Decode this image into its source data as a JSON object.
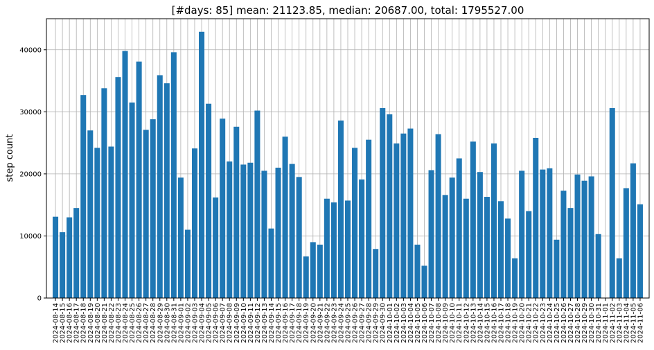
{
  "chart_data": {
    "type": "bar",
    "title": "[#days: 85] mean:  21123.85, median:  20687.00, total:  1795527.00",
    "xlabel": "",
    "ylabel": "step count",
    "ylim": [
      0,
      45000
    ],
    "y_ticks": [
      0,
      10000,
      20000,
      30000,
      40000
    ],
    "grid": true,
    "bar_color": "#1f77b4",
    "categories": [
      "2024-08-14",
      "2024-08-15",
      "2024-08-16",
      "2024-08-17",
      "2024-08-18",
      "2024-08-19",
      "2024-08-20",
      "2024-08-21",
      "2024-08-22",
      "2024-08-23",
      "2024-08-24",
      "2024-08-25",
      "2024-08-26",
      "2024-08-27",
      "2024-08-28",
      "2024-08-29",
      "2024-08-30",
      "2024-08-31",
      "2024-09-01",
      "2024-09-02",
      "2024-09-03",
      "2024-09-04",
      "2024-09-05",
      "2024-09-06",
      "2024-09-07",
      "2024-09-08",
      "2024-09-09",
      "2024-09-10",
      "2024-09-11",
      "2024-09-12",
      "2024-09-13",
      "2024-09-14",
      "2024-09-15",
      "2024-09-16",
      "2024-09-17",
      "2024-09-18",
      "2024-09-19",
      "2024-09-20",
      "2024-09-21",
      "2024-09-22",
      "2024-09-23",
      "2024-09-24",
      "2024-09-25",
      "2024-09-26",
      "2024-09-27",
      "2024-09-28",
      "2024-09-29",
      "2024-09-30",
      "2024-10-01",
      "2024-10-02",
      "2024-10-03",
      "2024-10-04",
      "2024-10-05",
      "2024-10-06",
      "2024-10-07",
      "2024-10-08",
      "2024-10-09",
      "2024-10-10",
      "2024-10-11",
      "2024-10-12",
      "2024-10-13",
      "2024-10-14",
      "2024-10-15",
      "2024-10-16",
      "2024-10-17",
      "2024-10-18",
      "2024-10-19",
      "2024-10-20",
      "2024-10-21",
      "2024-10-22",
      "2024-10-23",
      "2024-10-24",
      "2024-10-25",
      "2024-10-26",
      "2024-10-27",
      "2024-10-28",
      "2024-10-29",
      "2024-10-30",
      "2024-10-31",
      "2024-11-01",
      "2024-11-02",
      "2024-11-03",
      "2024-11-04",
      "2024-11-05",
      "2024-11-06"
    ],
    "values": [
      13100,
      10600,
      13000,
      14500,
      32700,
      27000,
      24200,
      33800,
      24400,
      35600,
      39800,
      31500,
      38100,
      27100,
      28800,
      35900,
      34600,
      39600,
      19400,
      11000,
      24100,
      42900,
      31300,
      16200,
      28900,
      22000,
      27600,
      21500,
      21800,
      30200,
      20500,
      11200,
      21000,
      26000,
      21600,
      19500,
      6700,
      9000,
      8600,
      16000,
      15400,
      28600,
      15700,
      24200,
      19100,
      25500,
      7900,
      30600,
      29600,
      24900,
      26500,
      27300,
      8600,
      5200,
      20600,
      26400,
      16600,
      19400,
      22500,
      16000,
      25200,
      20300,
      16300,
      24900,
      15600,
      12800,
      6400,
      20500,
      14000,
      25800,
      20700,
      20900,
      9400,
      17300,
      14500,
      19900,
      18900,
      19600,
      10300,
      0,
      30600,
      6400,
      17700,
      21700,
      15100
    ]
  }
}
